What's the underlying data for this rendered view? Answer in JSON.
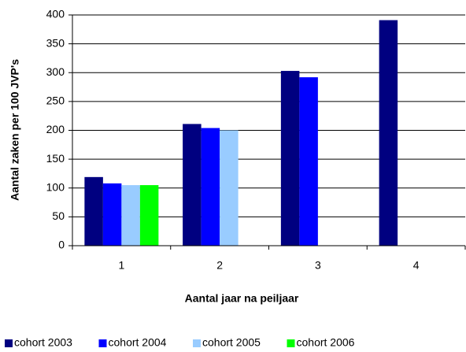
{
  "chart_data": {
    "type": "bar",
    "xlabel": "Aantal jaar na peiljaar",
    "ylabel": "Aantal zaken per 100 JVP's",
    "categories": [
      "1",
      "2",
      "3",
      "4"
    ],
    "series": [
      {
        "name": "cohort 2003",
        "color": "#000080",
        "values": [
          119,
          211,
          303,
          391
        ]
      },
      {
        "name": "cohort 2004",
        "color": "#0000ff",
        "values": [
          108,
          204,
          292,
          null
        ]
      },
      {
        "name": "cohort 2005",
        "color": "#99ccff",
        "values": [
          105,
          200,
          null,
          null
        ]
      },
      {
        "name": "cohort 2006",
        "color": "#00ff00",
        "values": [
          105,
          null,
          null,
          null
        ]
      }
    ],
    "ylim": [
      0,
      400
    ],
    "yticks": [
      0,
      50,
      100,
      150,
      200,
      250,
      300,
      350,
      400
    ],
    "grid": true,
    "legend": "bottom"
  }
}
